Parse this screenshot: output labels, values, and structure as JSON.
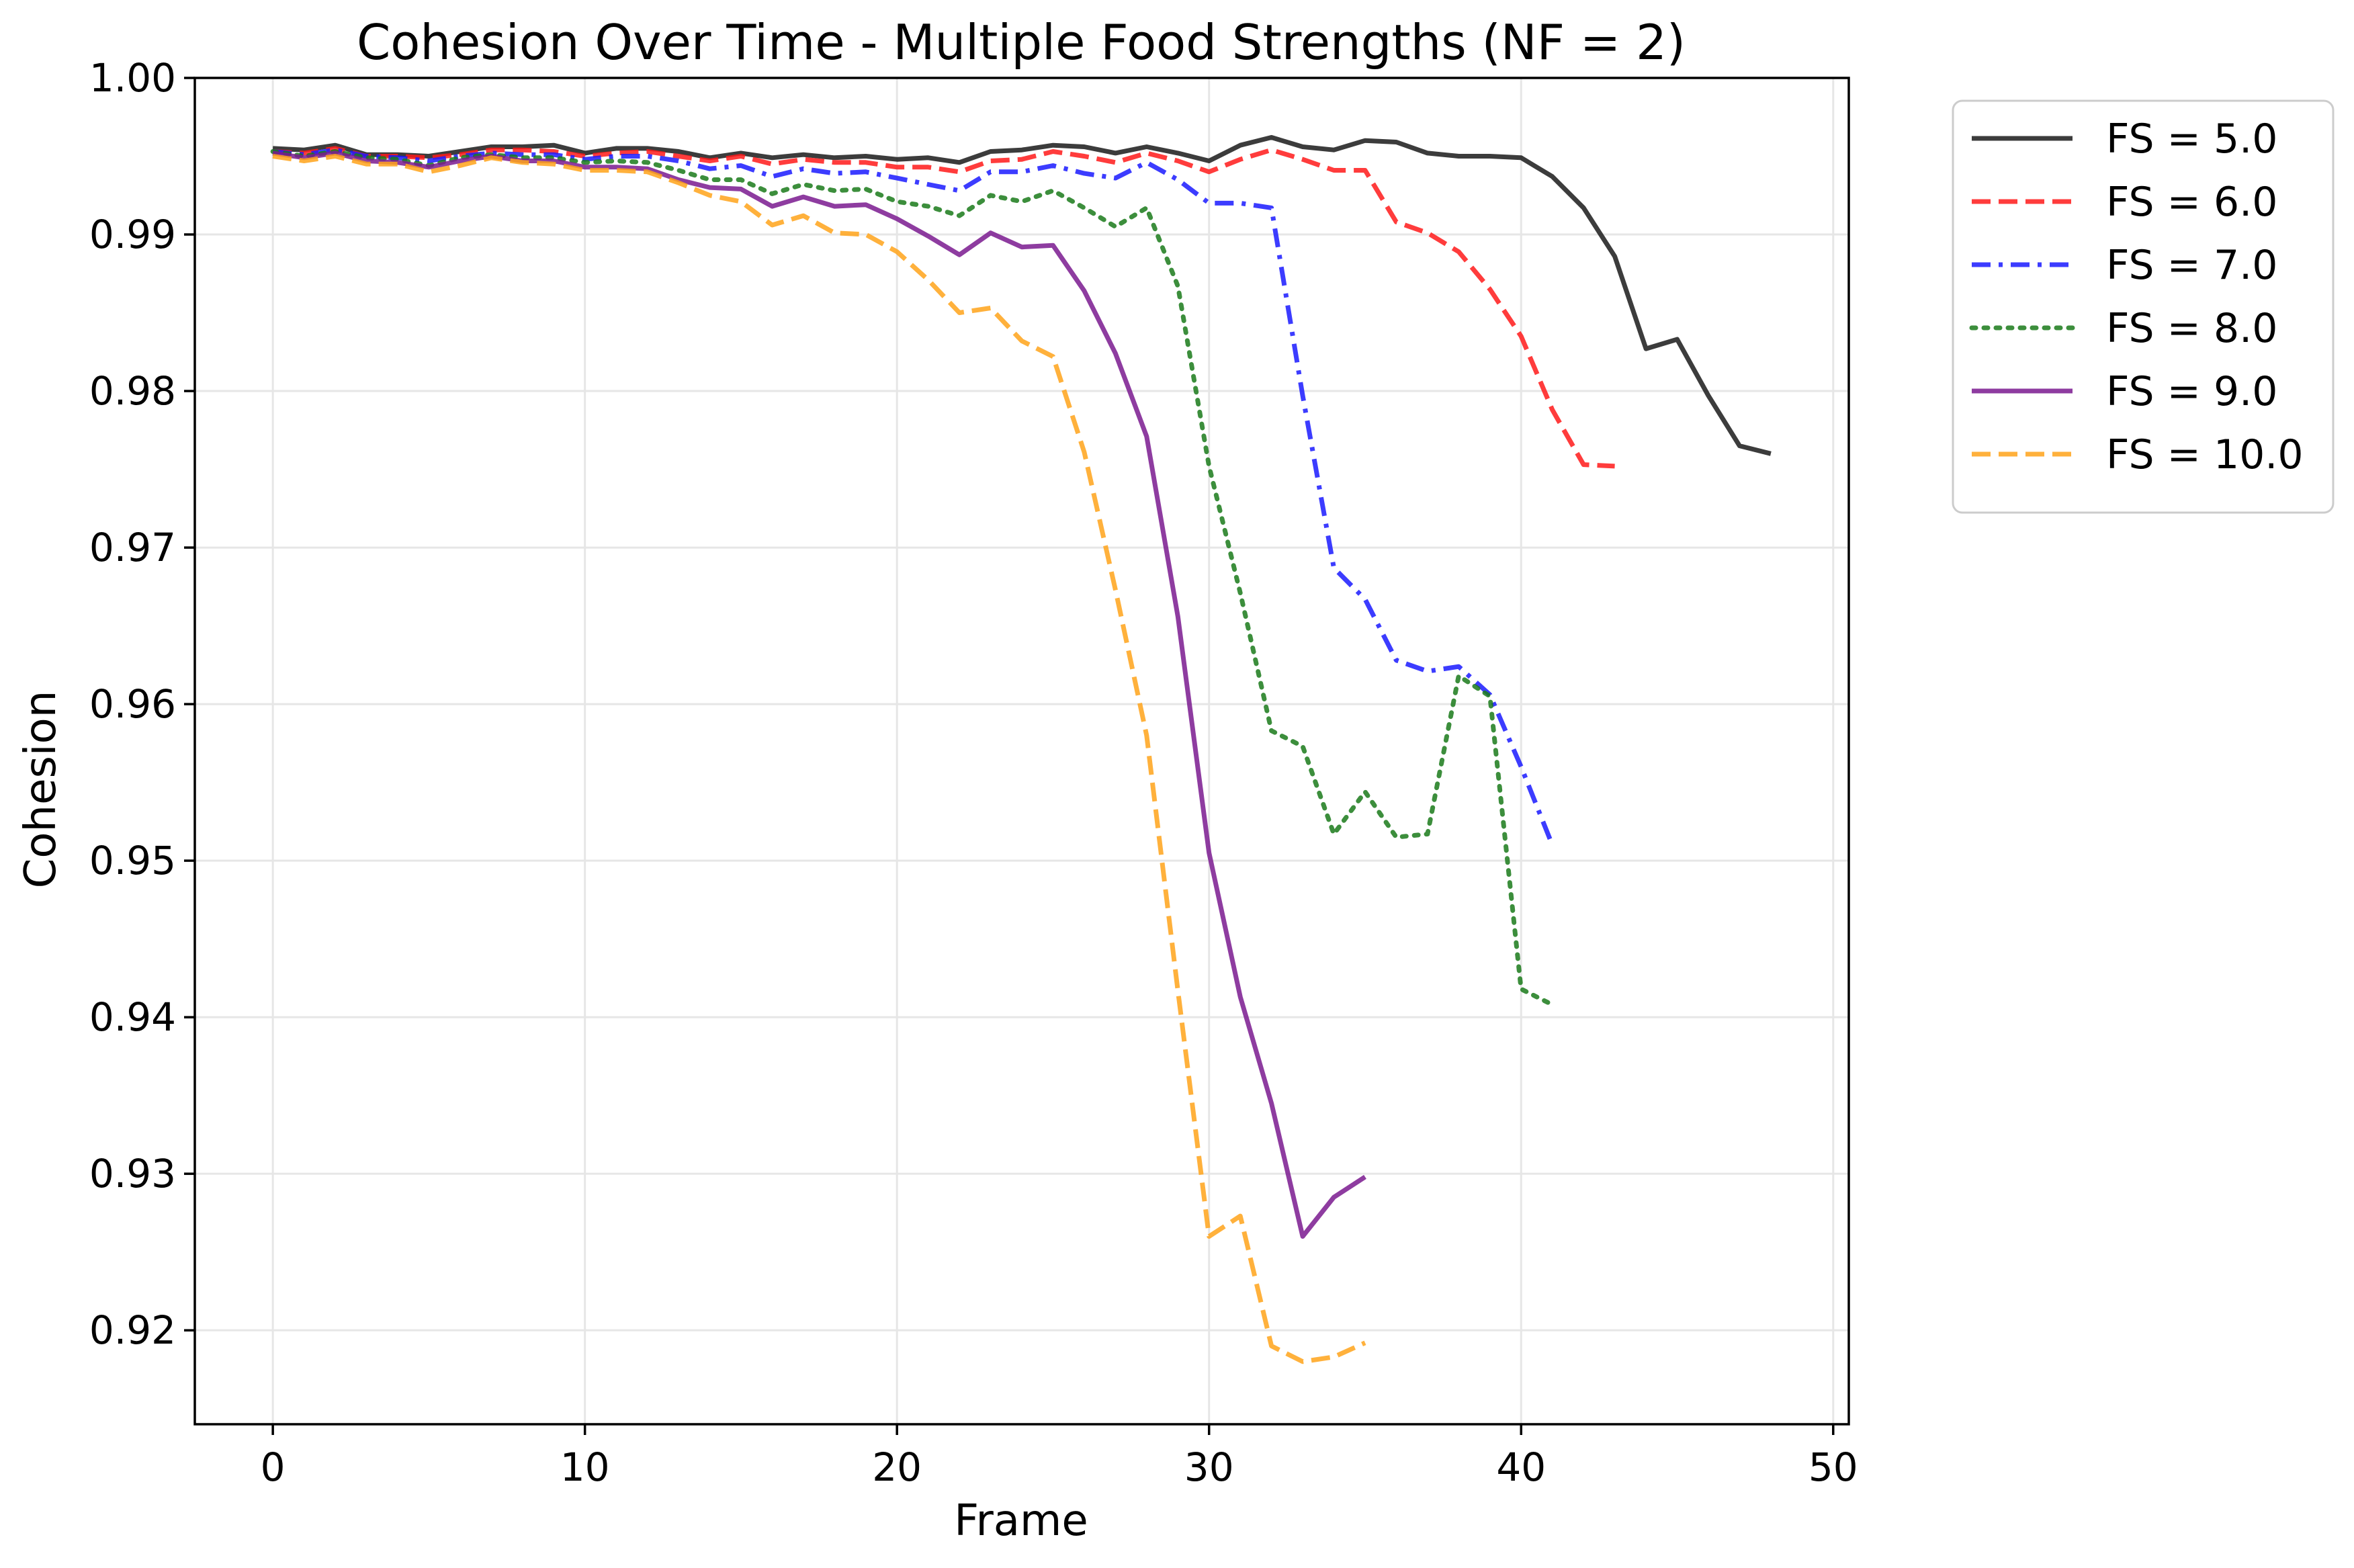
{
  "chart_data": {
    "type": "line",
    "title": "Cohesion Over Time - Multiple Food Strengths (NF = 2)",
    "xlabel": "Frame",
    "ylabel": "Cohesion",
    "xlim": [
      -2.5,
      50.5
    ],
    "ylim": [
      0.914,
      1.0
    ],
    "xticks": [
      0,
      10,
      20,
      30,
      40,
      50
    ],
    "xtick_labels": [
      "0",
      "10",
      "20",
      "30",
      "40",
      "50"
    ],
    "yticks": [
      0.92,
      0.93,
      0.94,
      0.95,
      0.96,
      0.97,
      0.98,
      0.99,
      1.0
    ],
    "ytick_labels": [
      "0.92",
      "0.93",
      "0.94",
      "0.95",
      "0.96",
      "0.97",
      "0.98",
      "0.99",
      "1.00"
    ],
    "grid": true,
    "legend_position": "outside-top-right",
    "series": [
      {
        "name": "FS = 5.0",
        "color": "#1a1a1a",
        "style": "solid",
        "x": [
          0,
          1,
          2,
          3,
          4,
          5,
          6,
          7,
          8,
          9,
          10,
          11,
          12,
          13,
          14,
          15,
          16,
          17,
          18,
          19,
          20,
          21,
          22,
          23,
          24,
          25,
          26,
          27,
          28,
          29,
          30,
          31,
          32,
          33,
          34,
          35,
          36,
          37,
          38,
          39,
          40,
          41,
          42,
          43,
          44,
          45,
          46,
          47,
          48
        ],
        "y": [
          0.9955,
          0.9954,
          0.9957,
          0.9951,
          0.9951,
          0.995,
          0.9953,
          0.9956,
          0.9956,
          0.9957,
          0.9952,
          0.9955,
          0.9955,
          0.9953,
          0.9949,
          0.9952,
          0.9949,
          0.9951,
          0.9949,
          0.995,
          0.9948,
          0.9949,
          0.9946,
          0.9953,
          0.9954,
          0.9957,
          0.9956,
          0.9952,
          0.9956,
          0.9952,
          0.9947,
          0.9957,
          0.9962,
          0.9956,
          0.9954,
          0.996,
          0.9959,
          0.9952,
          0.995,
          0.995,
          0.9949,
          0.9937,
          0.9917,
          0.9886,
          0.9827,
          0.9833,
          0.9797,
          0.9765,
          0.976
        ]
      },
      {
        "name": "FS = 6.0",
        "color": "#ff1a1a",
        "style": "dashed",
        "x": [
          0,
          1,
          2,
          3,
          4,
          5,
          6,
          7,
          8,
          9,
          10,
          11,
          12,
          13,
          14,
          15,
          16,
          17,
          18,
          19,
          20,
          21,
          22,
          23,
          24,
          25,
          26,
          27,
          28,
          29,
          30,
          31,
          32,
          33,
          34,
          35,
          36,
          37,
          38,
          39,
          40,
          41,
          42,
          43
        ],
        "y": [
          0.9953,
          0.9952,
          0.9955,
          0.995,
          0.995,
          0.9949,
          0.9951,
          0.9954,
          0.9954,
          0.9953,
          0.995,
          0.9952,
          0.9953,
          0.995,
          0.9947,
          0.995,
          0.9945,
          0.9948,
          0.9946,
          0.9946,
          0.9943,
          0.9943,
          0.994,
          0.9947,
          0.9948,
          0.9953,
          0.995,
          0.9946,
          0.9952,
          0.9947,
          0.994,
          0.9948,
          0.9954,
          0.9948,
          0.9941,
          0.9941,
          0.9908,
          0.9901,
          0.9889,
          0.9865,
          0.9835,
          0.9788,
          0.9753,
          0.9752
        ]
      },
      {
        "name": "FS = 7.0",
        "color": "#1a1aff",
        "style": "dashdot",
        "x": [
          0,
          1,
          2,
          3,
          4,
          5,
          6,
          7,
          8,
          9,
          10,
          11,
          12,
          13,
          14,
          15,
          16,
          17,
          18,
          19,
          20,
          21,
          22,
          23,
          24,
          25,
          26,
          27,
          28,
          29,
          30,
          31,
          32,
          33,
          34,
          35,
          36,
          37,
          38,
          39,
          40,
          41
        ],
        "y": [
          0.9953,
          0.9951,
          0.9954,
          0.995,
          0.9949,
          0.9947,
          0.995,
          0.9952,
          0.9951,
          0.9951,
          0.9948,
          0.995,
          0.995,
          0.9947,
          0.9942,
          0.9944,
          0.9937,
          0.9942,
          0.9939,
          0.994,
          0.9936,
          0.9932,
          0.9928,
          0.994,
          0.994,
          0.9944,
          0.9939,
          0.9936,
          0.9946,
          0.9935,
          0.992,
          0.992,
          0.9917,
          0.9797,
          0.9687,
          0.9667,
          0.9628,
          0.9621,
          0.9624,
          0.9606,
          0.956,
          0.951
        ]
      },
      {
        "name": "FS = 8.0",
        "color": "#1a7a1a",
        "style": "dotted",
        "x": [
          0,
          1,
          2,
          3,
          4,
          5,
          6,
          7,
          8,
          9,
          10,
          11,
          12,
          13,
          14,
          15,
          16,
          17,
          18,
          19,
          20,
          21,
          22,
          23,
          24,
          25,
          26,
          27,
          28,
          29,
          30,
          31,
          32,
          33,
          34,
          35,
          36,
          37,
          38,
          39,
          40,
          41
        ],
        "y": [
          0.9953,
          0.995,
          0.9953,
          0.9949,
          0.9948,
          0.9944,
          0.9949,
          0.9951,
          0.9949,
          0.9949,
          0.9946,
          0.9947,
          0.9946,
          0.9941,
          0.9935,
          0.9935,
          0.9926,
          0.9932,
          0.9928,
          0.9929,
          0.9921,
          0.9918,
          0.9912,
          0.9925,
          0.9921,
          0.9928,
          0.9917,
          0.9905,
          0.9917,
          0.9867,
          0.9752,
          0.9671,
          0.9583,
          0.9573,
          0.9517,
          0.9544,
          0.9515,
          0.9517,
          0.9618,
          0.9605,
          0.9418,
          0.9408
        ]
      },
      {
        "name": "FS = 9.0",
        "color": "#7a1a8f",
        "style": "solid",
        "x": [
          0,
          1,
          2,
          3,
          4,
          5,
          6,
          7,
          8,
          9,
          10,
          11,
          12,
          13,
          14,
          15,
          16,
          17,
          18,
          19,
          20,
          21,
          22,
          23,
          24,
          25,
          26,
          27,
          28,
          29,
          30,
          31,
          32,
          33,
          34,
          35
        ],
        "y": [
          0.9952,
          0.9949,
          0.9952,
          0.9947,
          0.9946,
          0.9943,
          0.9947,
          0.995,
          0.9947,
          0.9947,
          0.9943,
          0.9943,
          0.9942,
          0.9935,
          0.993,
          0.9929,
          0.9918,
          0.9924,
          0.9918,
          0.9919,
          0.991,
          0.9899,
          0.9887,
          0.9901,
          0.9892,
          0.9893,
          0.9864,
          0.9824,
          0.9771,
          0.9656,
          0.9505,
          0.9413,
          0.9345,
          0.926,
          0.9285,
          0.9298
        ]
      },
      {
        "name": "FS = 10.0",
        "color": "#ffa31a",
        "style": "dashed",
        "x": [
          0,
          1,
          2,
          3,
          4,
          5,
          6,
          7,
          8,
          9,
          10,
          11,
          12,
          13,
          14,
          15,
          16,
          17,
          18,
          19,
          20,
          21,
          22,
          23,
          24,
          25,
          26,
          27,
          28,
          29,
          30,
          31,
          32,
          33,
          34,
          35
        ],
        "y": [
          0.995,
          0.9947,
          0.995,
          0.9945,
          0.9945,
          0.994,
          0.9944,
          0.9949,
          0.9946,
          0.9945,
          0.9941,
          0.9941,
          0.994,
          0.9933,
          0.9925,
          0.9921,
          0.9906,
          0.9912,
          0.9901,
          0.99,
          0.9889,
          0.9871,
          0.985,
          0.9853,
          0.9832,
          0.9822,
          0.9761,
          0.9673,
          0.958,
          0.9417,
          0.926,
          0.9273,
          0.919,
          0.918,
          0.9183,
          0.9192
        ]
      }
    ]
  }
}
